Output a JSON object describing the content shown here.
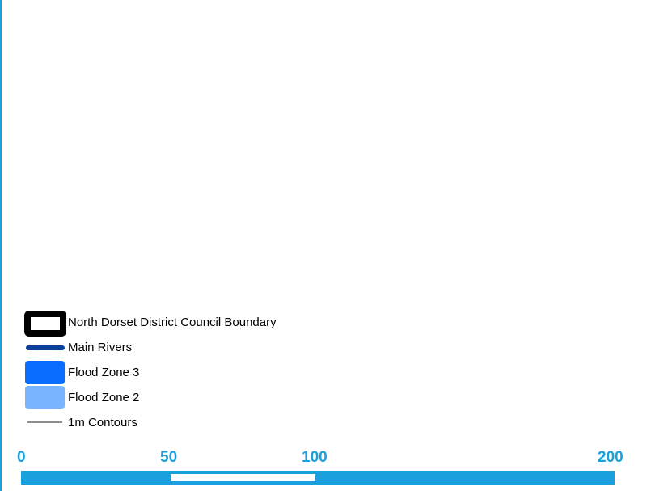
{
  "legend": {
    "items": [
      {
        "label": "North Dorset District Council Boundary",
        "symbol": "boundary-outline",
        "color": "#000000"
      },
      {
        "label": "Main Rivers",
        "symbol": "river-line",
        "color": "#0a3f9c"
      },
      {
        "label": "Flood Zone 3",
        "symbol": "area-fill",
        "color": "#0a6dff"
      },
      {
        "label": "Flood Zone 2",
        "symbol": "area-fill",
        "color": "#78b4ff"
      },
      {
        "label": "1m Contours",
        "symbol": "contour-line",
        "color": "#8c8c8c"
      }
    ]
  },
  "scale_bar": {
    "labels": [
      "0",
      "50",
      "100",
      "200"
    ],
    "color": "#1aa0dc"
  }
}
